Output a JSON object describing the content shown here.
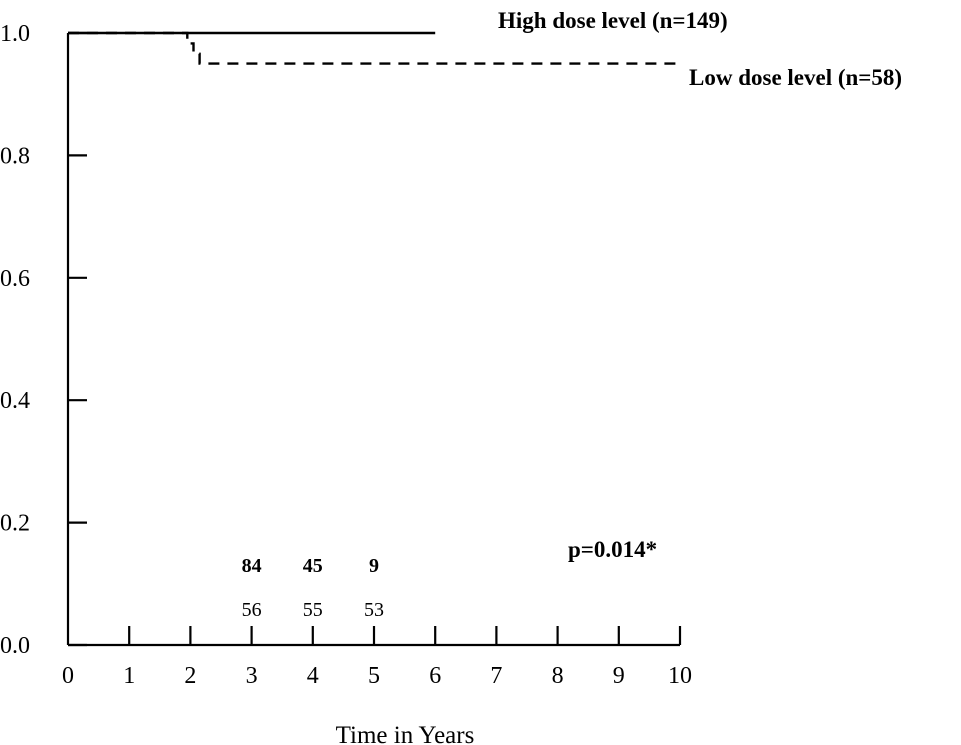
{
  "chart_data": {
    "type": "line",
    "title": "",
    "xlabel": "Time in Years",
    "ylabel": "",
    "xlim": [
      0,
      10
    ],
    "ylim": [
      0.0,
      1.0
    ],
    "x_ticks": [
      "0",
      "1",
      "2",
      "3",
      "4",
      "5",
      "6",
      "7",
      "8",
      "9",
      "10"
    ],
    "y_ticks": [
      "0.0",
      "0.2",
      "0.4",
      "0.6",
      "0.8",
      "1.0"
    ],
    "grid": false,
    "legend": "inline labels at top-right",
    "series": [
      {
        "name": "High dose level (n=149)",
        "style": "solid",
        "x": [
          0,
          6
        ],
        "y": [
          1.0,
          1.0
        ]
      },
      {
        "name": "Low dose level (n=58)",
        "style": "dashed",
        "x": [
          0,
          1.95,
          1.95,
          2.05,
          2.05,
          2.15,
          2.15,
          10
        ],
        "y": [
          1.0,
          1.0,
          0.983,
          0.983,
          0.966,
          0.966,
          0.95,
          0.95
        ]
      }
    ],
    "annotations": {
      "p_value": "p=0.014*"
    },
    "at_risk": {
      "x": [
        3,
        4,
        5
      ],
      "high_dose": [
        "84",
        "45",
        "9"
      ],
      "low_dose": [
        "56",
        "55",
        "53"
      ]
    }
  }
}
